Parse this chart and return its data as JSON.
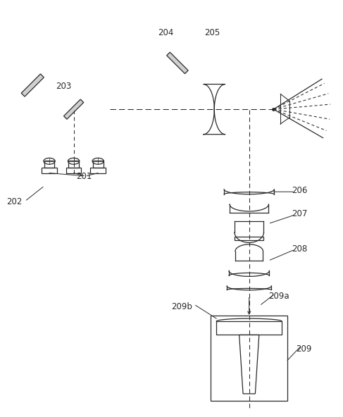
{
  "fig_width": 4.87,
  "fig_height": 5.92,
  "dpi": 100,
  "bg_color": "#ffffff",
  "lc": "#2a2a2a",
  "lw": 0.9,
  "label_fs": 8.5
}
